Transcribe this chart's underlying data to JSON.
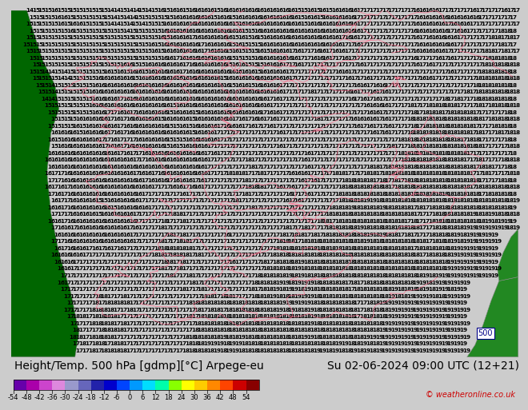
{
  "title": "Height/Temp. 500 hPa [gdmp][°C] Arpege-eu",
  "datetime": "Su 02-06-2024 09:00 UTC (12+21)",
  "copyright": "© weatheronline.co.uk",
  "colorbar_values": [
    -54,
    -48,
    -42,
    -36,
    -30,
    -24,
    -18,
    -12,
    -6,
    0,
    6,
    12,
    18,
    24,
    30,
    36,
    42,
    48,
    54
  ],
  "colorbar_colors": [
    "#6600aa",
    "#aa00aa",
    "#cc44cc",
    "#dd88dd",
    "#9999cc",
    "#6666bb",
    "#2222aa",
    "#0000cc",
    "#0044ff",
    "#0099ff",
    "#00ddff",
    "#00ffaa",
    "#88ff00",
    "#ffff00",
    "#ffcc00",
    "#ff8800",
    "#ff4400",
    "#cc0000",
    "#880000"
  ],
  "sea_color": "#00e8e8",
  "land_color_left": "#006600",
  "land_color_right": "#228822",
  "contour_color": "#ff6688",
  "number_color": "#000000",
  "bottom_bg": "#cccccc",
  "figure_bg": "#cccccc",
  "title_fontsize": 10,
  "colorbar_label_fontsize": 6,
  "num_fontsize": 5.2
}
